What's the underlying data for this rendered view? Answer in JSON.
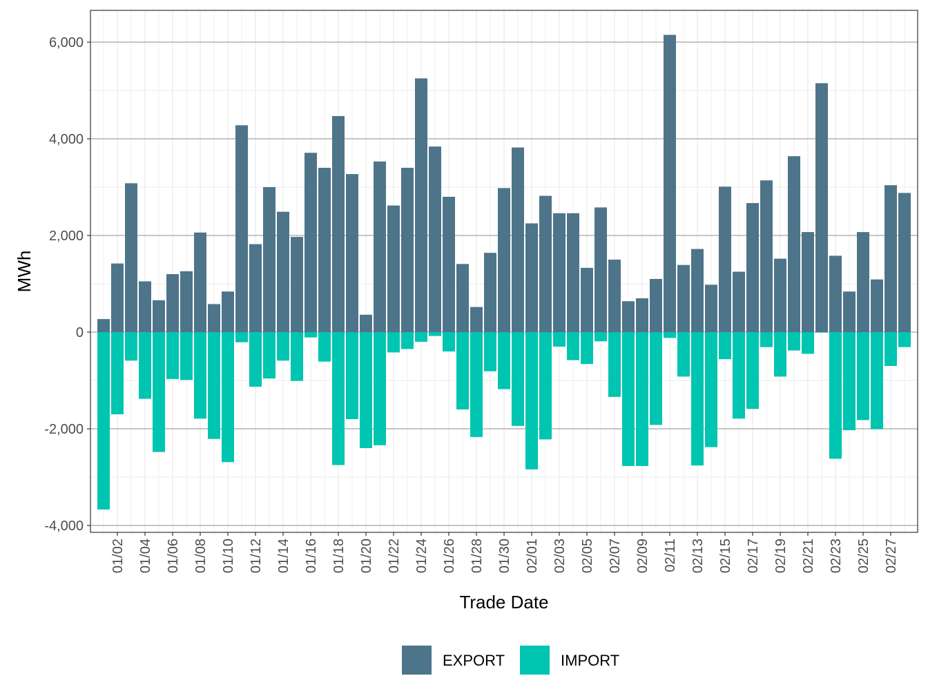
{
  "chart_data": {
    "type": "bar",
    "xlabel": "Trade Date",
    "ylabel": "MWh",
    "ylim": [
      -4000,
      6250
    ],
    "yticks": [
      -4000,
      -2000,
      0,
      2000,
      4000,
      6000
    ],
    "ytick_labels": [
      "-4,000",
      "-2,000",
      "0",
      "2,000",
      "4,000",
      "6,000"
    ],
    "grid": true,
    "legend_position": "bottom",
    "categories": [
      "01/01",
      "01/02",
      "01/03",
      "01/04",
      "01/05",
      "01/06",
      "01/07",
      "01/08",
      "01/09",
      "01/10",
      "01/11",
      "01/12",
      "01/13",
      "01/14",
      "01/15",
      "01/16",
      "01/17",
      "01/18",
      "01/19",
      "01/20",
      "01/21",
      "01/22",
      "01/23",
      "01/24",
      "01/25",
      "01/26",
      "01/27",
      "01/28",
      "01/29",
      "01/30",
      "01/31",
      "02/01",
      "02/02",
      "02/03",
      "02/04",
      "02/05",
      "02/06",
      "02/07",
      "02/08",
      "02/09",
      "02/10",
      "02/11",
      "02/12",
      "02/13",
      "02/14",
      "02/15",
      "02/16",
      "02/17",
      "02/18",
      "02/19",
      "02/20",
      "02/21",
      "02/22",
      "02/23",
      "02/24",
      "02/25",
      "02/26",
      "02/27",
      "02/28"
    ],
    "xtick_labels": [
      "01/02",
      "01/04",
      "01/06",
      "01/08",
      "01/10",
      "01/12",
      "01/14",
      "01/16",
      "01/18",
      "01/20",
      "01/22",
      "01/24",
      "01/26",
      "01/28",
      "01/30",
      "02/01",
      "02/03",
      "02/05",
      "02/07",
      "02/09",
      "02/11",
      "02/13",
      "02/15",
      "02/17",
      "02/19",
      "02/21",
      "02/23",
      "02/25",
      "02/27"
    ],
    "series": [
      {
        "name": "EXPORT",
        "color": "#4e7489",
        "values": [
          270,
          1420,
          3080,
          1050,
          660,
          1200,
          1260,
          2060,
          580,
          840,
          4280,
          1820,
          3000,
          2490,
          1970,
          3710,
          3400,
          4470,
          3270,
          360,
          3530,
          2620,
          3400,
          5250,
          3840,
          2800,
          1410,
          520,
          1640,
          2980,
          3820,
          2250,
          2820,
          2460,
          2460,
          1330,
          2580,
          1500,
          640,
          700,
          1100,
          6150,
          1390,
          1720,
          980,
          3010,
          1250,
          2670,
          3140,
          1520,
          3640,
          2070,
          5150,
          1580,
          840,
          2070,
          1090,
          3040,
          2880
        ]
      },
      {
        "name": "IMPORT",
        "color": "#00c5b0",
        "values": [
          -3670,
          -1700,
          -590,
          -1380,
          -2480,
          -970,
          -990,
          -1790,
          -2210,
          -2690,
          -210,
          -1130,
          -960,
          -590,
          -1010,
          -110,
          -610,
          -2750,
          -1800,
          -2400,
          -2340,
          -420,
          -350,
          -200,
          -80,
          -400,
          -1600,
          -2170,
          -810,
          -1180,
          -1940,
          -2840,
          -2220,
          -300,
          -580,
          -660,
          -190,
          -1340,
          -2770,
          -2770,
          -1920,
          -120,
          -920,
          -2760,
          -2380,
          -560,
          -1790,
          -1590,
          -310,
          -920,
          -380,
          -450,
          -10,
          -2620,
          -2030,
          -1820,
          -2010,
          -700,
          -310
        ]
      }
    ]
  }
}
